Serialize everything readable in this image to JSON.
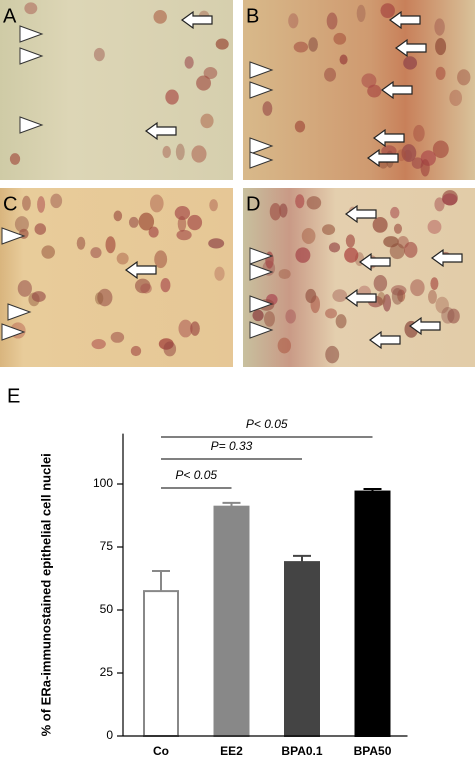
{
  "panels": [
    "A",
    "B",
    "C",
    "D"
  ],
  "chart_data": {
    "type": "bar",
    "panel_label": "E",
    "ylabel": "% of ERa-immunostained epithelial cell nuclei",
    "categories": [
      "Co",
      "EE2",
      "BPA0.1",
      "BPA50"
    ],
    "values": [
      57.5,
      91,
      69,
      97
    ],
    "errors": [
      8,
      1.5,
      2.5,
      1
    ],
    "colors": [
      "#ffffff",
      "#888888",
      "#444444",
      "#000000"
    ],
    "ylim": [
      0,
      120
    ],
    "yticks": [
      0,
      25,
      50,
      75,
      100
    ],
    "annotations": [
      "P< 0.05",
      "P= 0.33",
      "P< 0.05"
    ]
  }
}
